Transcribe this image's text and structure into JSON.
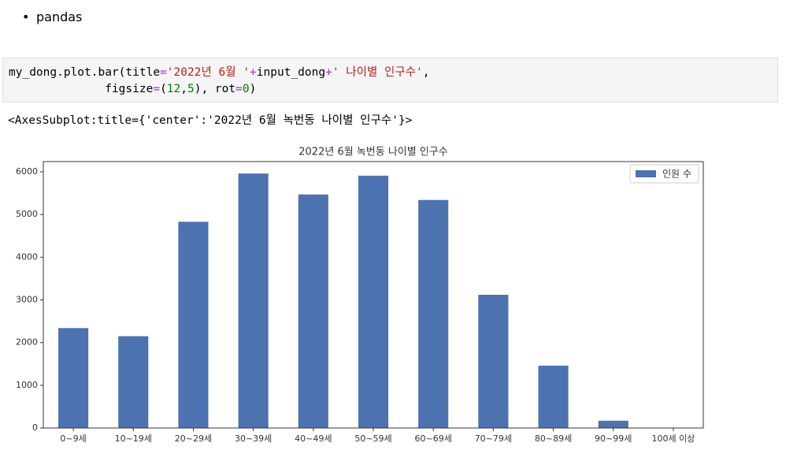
{
  "bullet": "pandas",
  "code": [
    [
      {
        "text": "my_dong.plot.bar(title",
        "color": "#000000"
      },
      {
        "text": "=",
        "color": "#aa22ff"
      },
      {
        "text": "'2022년 6월 '",
        "color": "#ba2121"
      },
      {
        "text": "+",
        "color": "#aa22ff"
      },
      {
        "text": "input_dong",
        "color": "#000000"
      },
      {
        "text": "+",
        "color": "#aa22ff"
      },
      {
        "text": "' 나이별 인구수'",
        "color": "#ba2121"
      },
      {
        "text": ",",
        "color": "#000000"
      }
    ],
    [
      {
        "text": "              figsize",
        "color": "#000000"
      },
      {
        "text": "=",
        "color": "#aa22ff"
      },
      {
        "text": "(",
        "color": "#000000"
      },
      {
        "text": "12",
        "color": "#008000"
      },
      {
        "text": ",",
        "color": "#000000"
      },
      {
        "text": "5",
        "color": "#008000"
      },
      {
        "text": "), rot",
        "color": "#000000"
      },
      {
        "text": "=",
        "color": "#aa22ff"
      },
      {
        "text": "0",
        "color": "#008000"
      },
      {
        "text": ")",
        "color": "#000000"
      }
    ]
  ],
  "output": "<AxesSubplot:title={'center':'2022년 6월 녹번동 나이별 인구수'}>",
  "chart_data": {
    "type": "bar",
    "title": "2022년 6월 녹번동 나이별 인구수",
    "categories": [
      "0~9세",
      "10~19세",
      "20~29세",
      "30~39세",
      "40~49세",
      "50~59세",
      "60~69세",
      "70~79세",
      "80~89세",
      "90~99세",
      "100세 이상"
    ],
    "series": [
      {
        "name": "인원 수",
        "color": "#4c72b0",
        "values": [
          2340,
          2150,
          4830,
          5960,
          5470,
          5910,
          5340,
          3120,
          1460,
          170,
          5
        ]
      }
    ],
    "ylim": [
      0,
      6240
    ],
    "yticks": [
      0,
      1000,
      2000,
      3000,
      4000,
      5000,
      6000
    ],
    "grid": false,
    "legend": "upper right"
  }
}
